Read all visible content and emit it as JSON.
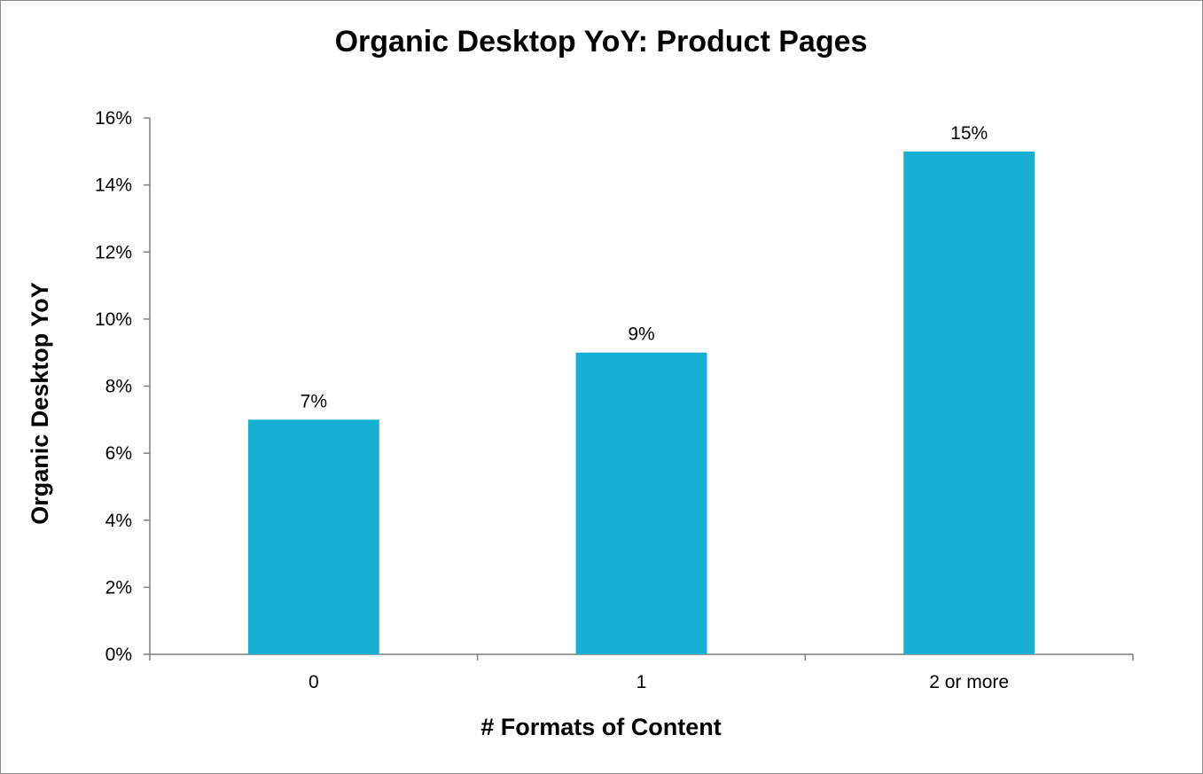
{
  "chart_data": {
    "type": "bar",
    "title": "Organic Desktop YoY: Product Pages",
    "xlabel": "# Formats of Content",
    "ylabel": "Organic Desktop YoY",
    "categories": [
      "0",
      "1",
      "2 or more"
    ],
    "values": [
      0.07,
      0.09,
      0.15
    ],
    "data_labels": [
      "7%",
      "9%",
      "15%"
    ],
    "ylim": [
      0,
      0.16
    ],
    "yticks": [
      0,
      0.02,
      0.04,
      0.06,
      0.08,
      0.1,
      0.12,
      0.14,
      0.16
    ],
    "ytick_labels": [
      "0%",
      "2%",
      "4%",
      "6%",
      "8%",
      "10%",
      "12%",
      "14%",
      "16%"
    ],
    "grid": false,
    "legend": "none",
    "bar_color": "#18AFD5"
  }
}
